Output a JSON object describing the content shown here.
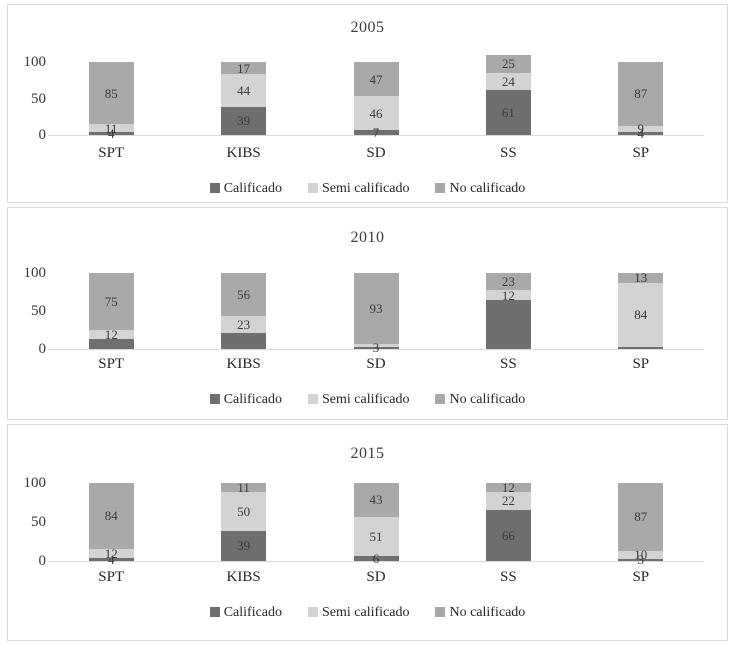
{
  "legend": {
    "items": [
      {
        "label": "Calificado",
        "swatch": "calificado-swatch"
      },
      {
        "label": "Semi calificado",
        "swatch": "semi-calificado-swatch"
      },
      {
        "label": "No calificado",
        "swatch": "no-calificado-swatch"
      }
    ]
  },
  "y_axis": {
    "ticks": [
      "100",
      "50",
      "0"
    ]
  },
  "colors": {
    "calificado": "#6f6f6f",
    "semi_calificado": "#d3d3d3",
    "no_calificado": "#a9a9a9",
    "axis_line": "#d9d9d9",
    "panel_border": "#d9d9d9",
    "bar_label_text": "#3a3a3a"
  },
  "chart_data": [
    {
      "type": "bar",
      "stacked": true,
      "title": "2005",
      "categories": [
        "SPT",
        "KIBS",
        "SD",
        "SS",
        "SP"
      ],
      "ylim": [
        0,
        100
      ],
      "grid": false,
      "legend_position": "bottom",
      "series": [
        {
          "name": "Calificado",
          "values": [
            4,
            39,
            7,
            61,
            4
          ],
          "labels": [
            "4",
            "39",
            "7",
            "61",
            "4"
          ]
        },
        {
          "name": "Semi calificado",
          "values": [
            11,
            44,
            46,
            24,
            9
          ],
          "labels": [
            "11",
            "44",
            "46",
            "24",
            "9"
          ]
        },
        {
          "name": "No calificado",
          "values": [
            85,
            17,
            47,
            25,
            87
          ],
          "labels": [
            "85",
            "17",
            "47",
            "25",
            "87"
          ]
        }
      ]
    },
    {
      "type": "bar",
      "stacked": true,
      "title": "2010",
      "categories": [
        "SPT",
        "KIBS",
        "SD",
        "SS",
        "SP"
      ],
      "ylim": [
        0,
        100
      ],
      "grid": false,
      "legend_position": "bottom",
      "series": [
        {
          "name": "Calificado",
          "values": [
            13,
            21,
            3,
            65,
            3
          ],
          "labels": [
            "",
            "",
            "3",
            "",
            ""
          ]
        },
        {
          "name": "Semi calificado",
          "values": [
            12,
            23,
            4,
            12,
            84
          ],
          "labels": [
            "12",
            "23",
            "",
            "12",
            "84"
          ]
        },
        {
          "name": "No calificado",
          "values": [
            75,
            56,
            93,
            23,
            13
          ],
          "labels": [
            "75",
            "56",
            "93",
            "23",
            "13"
          ]
        }
      ]
    },
    {
      "type": "bar",
      "stacked": true,
      "title": "2015",
      "categories": [
        "SPT",
        "KIBS",
        "SD",
        "SS",
        "SP"
      ],
      "ylim": [
        0,
        100
      ],
      "grid": false,
      "legend_position": "bottom",
      "series": [
        {
          "name": "Calificado",
          "values": [
            4,
            39,
            6,
            66,
            3
          ],
          "labels": [
            "4",
            "39",
            "6",
            "66",
            "3"
          ]
        },
        {
          "name": "Semi calificado",
          "values": [
            12,
            50,
            51,
            22,
            10
          ],
          "labels": [
            "12",
            "50",
            "51",
            "22",
            "10"
          ]
        },
        {
          "name": "No calificado",
          "values": [
            84,
            11,
            43,
            12,
            87
          ],
          "labels": [
            "84",
            "11",
            "43",
            "12",
            "87"
          ]
        }
      ]
    }
  ]
}
